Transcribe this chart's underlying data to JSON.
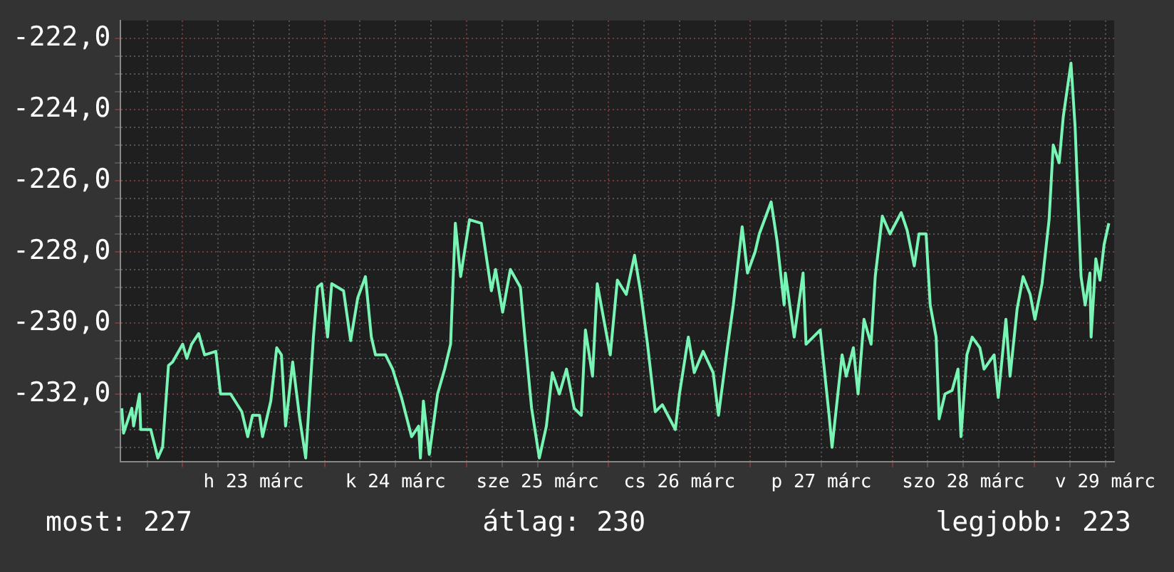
{
  "chart_data": {
    "type": "line",
    "annotations": [
      "most: 227",
      "átlag: 230",
      "legjobb: 223"
    ],
    "x": [
      "--03-22T13:42",
      "--03-22T14:00",
      "--03-22T15:24",
      "--03-22T15:42",
      "--03-22T16:42",
      "--03-22T16:54",
      "--03-22T18:36",
      "--03-22T19:48",
      "--03-22T20:36",
      "--03-22T21:36",
      "--03-22T22:18",
      "--03-23T00:00",
      "--03-23T00:42",
      "--03-23T01:30",
      "--03-23T02:42",
      "--03-23T03:42",
      "--03-23T05:36",
      "--03-23T06:24",
      "--03-23T08:06",
      "--03-23T10:00",
      "--03-23T11:00",
      "--03-23T11:48",
      "--03-23T13:00",
      "--03-23T13:30",
      "--03-23T14:54",
      "--03-23T15:54",
      "--03-23T16:42",
      "--03-23T17:24",
      "--03-23T18:36",
      "--03-23T19:48",
      "--03-23T20:48",
      "--03-23T22:06",
      "--03-23T22:48",
      "--03-23T23:30",
      "--03-24T00:30",
      "--03-24T01:12",
      "--03-24T03:12",
      "--03-24T04:24",
      "--03-24T05:36",
      "--03-24T06:54",
      "--03-24T07:54",
      "--03-24T08:36",
      "--03-24T10:18",
      "--03-24T11:30",
      "--03-24T13:00",
      "--03-24T14:42",
      "--03-24T15:54",
      "--03-24T16:12",
      "--03-24T16:42",
      "--03-24T17:42",
      "--03-24T19:06",
      "--03-24T20:18",
      "--03-24T21:18",
      "--03-24T22:06",
      "--03-24T23:00",
      "--03-25T00:30",
      "--03-25T02:30",
      "--03-25T04:12",
      "--03-25T04:54",
      "--03-25T06:06",
      "--03-25T07:24",
      "--03-25T09:06",
      "--03-25T09:48",
      "--03-25T11:00",
      "--03-25T12:18",
      "--03-25T13:30",
      "--03-25T14:30",
      "--03-25T15:42",
      "--03-25T16:54",
      "--03-25T18:12",
      "--03-25T19:24",
      "--03-25T20:06",
      "--03-25T21:18",
      "--03-25T22:06",
      "--03-26T00:18",
      "--03-26T01:30",
      "--03-26T03:00",
      "--03-26T04:24",
      "--03-26T05:24",
      "--03-26T06:36",
      "--03-26T07:54",
      "--03-26T09:06",
      "--03-26T11:18",
      "--03-26T12:00",
      "--03-26T13:30",
      "--03-26T14:30",
      "--03-26T16:00",
      "--03-26T17:42",
      "--03-26T18:36",
      "--03-26T20:06",
      "--03-26T21:06",
      "--03-26T22:36",
      "--03-26T23:30",
      "--03-27T00:48",
      "--03-27T01:30",
      "--03-27T03:30",
      "--03-27T04:30",
      "--03-27T05:42",
      "--03-27T05:54",
      "--03-27T07:24",
      "--03-27T08:54",
      "--03-27T09:24",
      "--03-27T11:48",
      "--03-27T13:18",
      "--03-27T13:48",
      "--03-27T15:30",
      "--03-27T16:12",
      "--03-27T17:24",
      "--03-27T18:12",
      "--03-27T19:12",
      "--03-27T20:24",
      "--03-27T21:06",
      "--03-27T22:18",
      "--03-27T23:36",
      "--03-28T01:30",
      "--03-28T02:30",
      "--03-28T03:42",
      "--03-28T04:30",
      "--03-28T05:42",
      "--03-28T06:24",
      "--03-28T07:24",
      "--03-28T07:54",
      "--03-28T08:54",
      "--03-28T10:06",
      "--03-28T11:06",
      "--03-28T11:36",
      "--03-28T12:36",
      "--03-28T13:30",
      "--03-28T14:48",
      "--03-28T15:30",
      "--03-28T17:12",
      "--03-28T17:54",
      "--03-28T19:12",
      "--03-28T19:54",
      "--03-28T21:06",
      "--03-28T22:06",
      "--03-28T23:18",
      "--03-29T00:06",
      "--03-29T01:18",
      "--03-29T02:30",
      "--03-29T03:12",
      "--03-29T04:12",
      "--03-29T04:54",
      "--03-29T06:12",
      "--03-29T06:54",
      "--03-29T07:54",
      "--03-29T08:36",
      "--03-29T09:24",
      "--03-29T09:36",
      "--03-29T10:24",
      "--03-29T11:06",
      "--03-29T11:48",
      "--03-29T12:36"
    ],
    "series": [
      {
        "color": "#78f5b4",
        "values": [
          -232.4,
          -233.1,
          -232.4,
          -232.9,
          -232.0,
          -233.0,
          -233.0,
          -233.8,
          -233.5,
          -231.2,
          -231.1,
          -230.6,
          -231.0,
          -230.6,
          -230.3,
          -230.9,
          -230.8,
          -232.0,
          -232.0,
          -232.5,
          -233.2,
          -232.6,
          -232.6,
          -233.2,
          -232.2,
          -230.7,
          -230.9,
          -232.9,
          -231.1,
          -232.7,
          -233.8,
          -230.4,
          -229.0,
          -228.9,
          -230.4,
          -228.9,
          -229.1,
          -230.5,
          -229.3,
          -228.7,
          -230.4,
          -230.9,
          -230.9,
          -231.3,
          -232.1,
          -233.2,
          -232.9,
          -233.8,
          -232.2,
          -233.7,
          -232.0,
          -231.3,
          -230.6,
          -227.2,
          -228.7,
          -227.1,
          -227.2,
          -229.1,
          -228.5,
          -229.7,
          -228.5,
          -229.0,
          -230.3,
          -232.4,
          -233.8,
          -232.9,
          -231.4,
          -232.0,
          -231.3,
          -232.4,
          -232.6,
          -230.2,
          -231.5,
          -228.9,
          -230.9,
          -228.8,
          -229.2,
          -228.1,
          -229.1,
          -230.6,
          -232.5,
          -232.3,
          -233.0,
          -232.0,
          -230.4,
          -231.4,
          -230.8,
          -231.4,
          -232.6,
          -230.7,
          -229.5,
          -227.3,
          -228.6,
          -228.0,
          -227.5,
          -226.6,
          -227.7,
          -229.5,
          -228.6,
          -230.4,
          -228.6,
          -230.6,
          -230.2,
          -232.6,
          -233.5,
          -230.9,
          -231.5,
          -230.7,
          -232.0,
          -229.9,
          -230.6,
          -228.7,
          -227.0,
          -227.5,
          -226.9,
          -227.4,
          -228.4,
          -227.5,
          -227.5,
          -229.5,
          -230.4,
          -232.7,
          -232.0,
          -231.9,
          -231.3,
          -233.2,
          -230.9,
          -230.4,
          -230.7,
          -231.3,
          -230.9,
          -232.1,
          -229.9,
          -231.5,
          -229.6,
          -228.7,
          -229.2,
          -229.9,
          -228.9,
          -227.1,
          -225.0,
          -225.5,
          -224.2,
          -222.7,
          -224.5,
          -228.7,
          -229.5,
          -228.6,
          -230.4,
          -228.2,
          -228.8,
          -227.8,
          -227.2
        ]
      }
    ],
    "xlim": [
      "--03-22T13:30",
      "--03-29T13:30"
    ],
    "xticks": [
      {
        "value": "--03-22T18:00",
        "label": null
      },
      {
        "value": "--03-23T00:00",
        "label": null
      },
      {
        "value": "--03-23T06:00",
        "label": null
      },
      {
        "value": "--03-23T12:00",
        "label": "h 23 márc"
      },
      {
        "value": "--03-23T18:00",
        "label": null
      },
      {
        "value": "--03-24T00:00",
        "label": null
      },
      {
        "value": "--03-24T06:00",
        "label": null
      },
      {
        "value": "--03-24T12:00",
        "label": "k 24 márc"
      },
      {
        "value": "--03-24T18:00",
        "label": null
      },
      {
        "value": "--03-25T00:00",
        "label": null
      },
      {
        "value": "--03-25T06:00",
        "label": null
      },
      {
        "value": "--03-25T12:00",
        "label": "sze 25 márc"
      },
      {
        "value": "--03-25T18:00",
        "label": null
      },
      {
        "value": "--03-26T00:00",
        "label": null
      },
      {
        "value": "--03-26T06:00",
        "label": null
      },
      {
        "value": "--03-26T12:00",
        "label": "cs 26 márc"
      },
      {
        "value": "--03-26T18:00",
        "label": null
      },
      {
        "value": "--03-27T00:00",
        "label": null
      },
      {
        "value": "--03-27T06:00",
        "label": null
      },
      {
        "value": "--03-27T12:00",
        "label": "p 27 márc"
      },
      {
        "value": "--03-27T18:00",
        "label": null
      },
      {
        "value": "--03-28T00:00",
        "label": null
      },
      {
        "value": "--03-28T06:00",
        "label": null
      },
      {
        "value": "--03-28T12:00",
        "label": "szo 28 márc"
      },
      {
        "value": "--03-28T18:00",
        "label": null
      },
      {
        "value": "--03-29T00:00",
        "label": null
      },
      {
        "value": "--03-29T06:00",
        "label": null
      },
      {
        "value": "--03-29T12:00",
        "label": "v 29 márc"
      }
    ],
    "ylim": [
      -233.9,
      -221.5
    ],
    "yticks": [
      {
        "value": -233.5,
        "label": null
      },
      {
        "value": -233,
        "label": null
      },
      {
        "value": -232.5,
        "label": null
      },
      {
        "value": -232,
        "label": "-232,0"
      },
      {
        "value": -231.5,
        "label": null
      },
      {
        "value": -231,
        "label": null
      },
      {
        "value": -230.5,
        "label": null
      },
      {
        "value": -230,
        "label": "-230,0"
      },
      {
        "value": -229.5,
        "label": null
      },
      {
        "value": -229,
        "label": null
      },
      {
        "value": -228.5,
        "label": null
      },
      {
        "value": -228,
        "label": "-228,0"
      },
      {
        "value": -227.5,
        "label": null
      },
      {
        "value": -227,
        "label": null
      },
      {
        "value": -226.5,
        "label": null
      },
      {
        "value": -226,
        "label": "-226,0"
      },
      {
        "value": -225.5,
        "label": null
      },
      {
        "value": -225,
        "label": null
      },
      {
        "value": -224.5,
        "label": null
      },
      {
        "value": -224,
        "label": "-224,0"
      },
      {
        "value": -223.5,
        "label": null
      },
      {
        "value": -223,
        "label": null
      },
      {
        "value": -222.5,
        "label": null
      },
      {
        "value": -222,
        "label": "-222,0"
      }
    ],
    "grid": true,
    "legend": false
  }
}
